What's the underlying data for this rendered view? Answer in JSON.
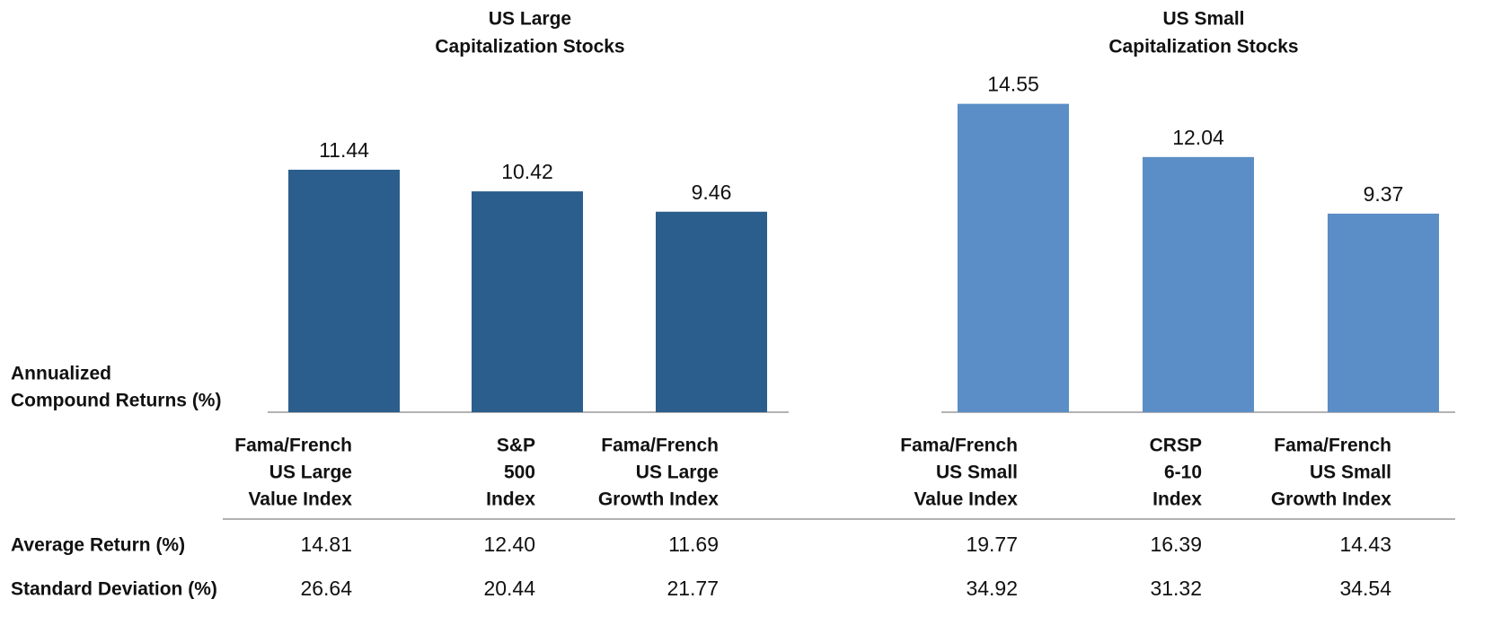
{
  "chart_data": [
    {
      "type": "bar",
      "title": [
        "US Large",
        "Capitalization Stocks"
      ],
      "categories": [
        [
          "Fama/French",
          "US Large",
          "Value Index"
        ],
        [
          "S&P",
          "500",
          "Index"
        ],
        [
          "Fama/French",
          "US Large",
          "Growth Index"
        ]
      ],
      "values": [
        11.44,
        10.42,
        9.46
      ],
      "color": "#2b5e8c"
    },
    {
      "type": "bar",
      "title": [
        "US Small",
        "Capitalization Stocks"
      ],
      "categories": [
        [
          "Fama/French",
          "US Small",
          "Value Index"
        ],
        [
          "CRSP",
          "6-10",
          "Index"
        ],
        [
          "Fama/French",
          "US Small",
          "Growth Index"
        ]
      ],
      "values": [
        14.55,
        12.04,
        9.37
      ],
      "color": "#5b8ec6"
    }
  ],
  "y_label": [
    "Annualized",
    "Compound Returns (%)"
  ],
  "table": {
    "rows": [
      {
        "label": "Average Return (%)",
        "values": [
          "14.81",
          "12.40",
          "11.69",
          "19.77",
          "16.39",
          "14.43"
        ]
      },
      {
        "label": "Standard Deviation (%)",
        "values": [
          "26.64",
          "20.44",
          "21.77",
          "34.92",
          "31.32",
          "34.54"
        ]
      }
    ]
  }
}
